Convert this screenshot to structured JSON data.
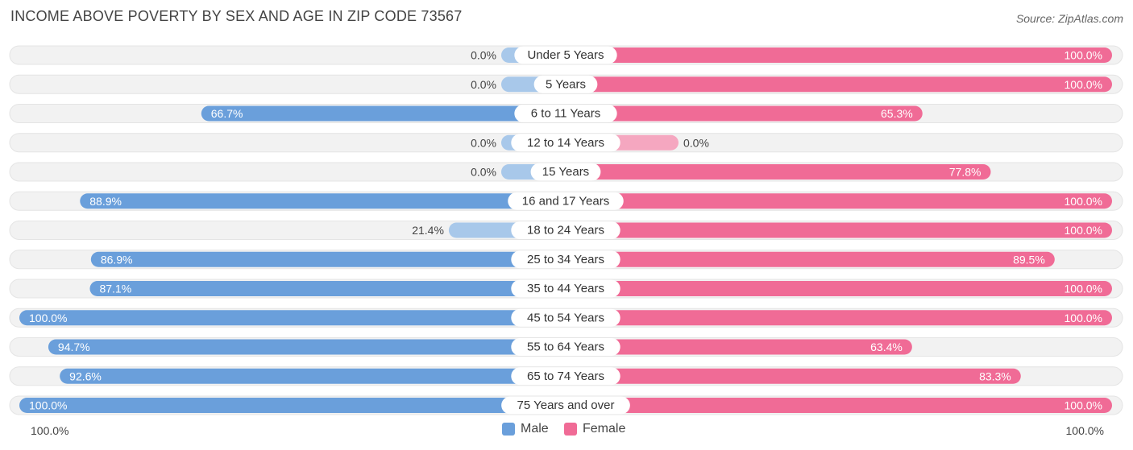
{
  "header": {
    "title": "INCOME ABOVE POVERTY BY SEX AND AGE IN ZIP CODE 73567",
    "source": "Source: ZipAtlas.com"
  },
  "legend": {
    "male_label": "Male",
    "female_label": "Female"
  },
  "axis": {
    "left_label": "100.0%",
    "right_label": "100.0%"
  },
  "colors": {
    "male_strong": "#6a9fdb",
    "male_light": "#a8c8ea",
    "female_strong": "#f06b96",
    "female_light": "#f5a7c0",
    "row_bg": "#f2f2f2",
    "row_border": "#e4e4e4"
  },
  "chart_data": {
    "type": "bar",
    "orientation": "horizontal-diverging",
    "title": "INCOME ABOVE POVERTY BY SEX AND AGE IN ZIP CODE 73567",
    "xlim": [
      0,
      100
    ],
    "categories": [
      "Under 5 Years",
      "5 Years",
      "6 to 11 Years",
      "12 to 14 Years",
      "15 Years",
      "16 and 17 Years",
      "18 to 24 Years",
      "25 to 34 Years",
      "35 to 44 Years",
      "45 to 54 Years",
      "55 to 64 Years",
      "65 to 74 Years",
      "75 Years and over"
    ],
    "series": [
      {
        "name": "Male",
        "values": [
          0.0,
          0.0,
          66.7,
          0.0,
          0.0,
          88.9,
          21.4,
          86.9,
          87.1,
          100.0,
          94.7,
          92.6,
          100.0
        ],
        "labels": [
          "0.0%",
          "0.0%",
          "66.7%",
          "0.0%",
          "0.0%",
          "88.9%",
          "21.4%",
          "86.9%",
          "87.1%",
          "100.0%",
          "94.7%",
          "92.6%",
          "100.0%"
        ]
      },
      {
        "name": "Female",
        "values": [
          100.0,
          100.0,
          65.3,
          0.0,
          77.8,
          100.0,
          100.0,
          89.5,
          100.0,
          100.0,
          63.4,
          83.3,
          100.0
        ],
        "labels": [
          "100.0%",
          "100.0%",
          "65.3%",
          "0.0%",
          "77.8%",
          "100.0%",
          "100.0%",
          "89.5%",
          "100.0%",
          "100.0%",
          "63.4%",
          "83.3%",
          "100.0%"
        ]
      }
    ],
    "legend_position": "bottom-center"
  }
}
